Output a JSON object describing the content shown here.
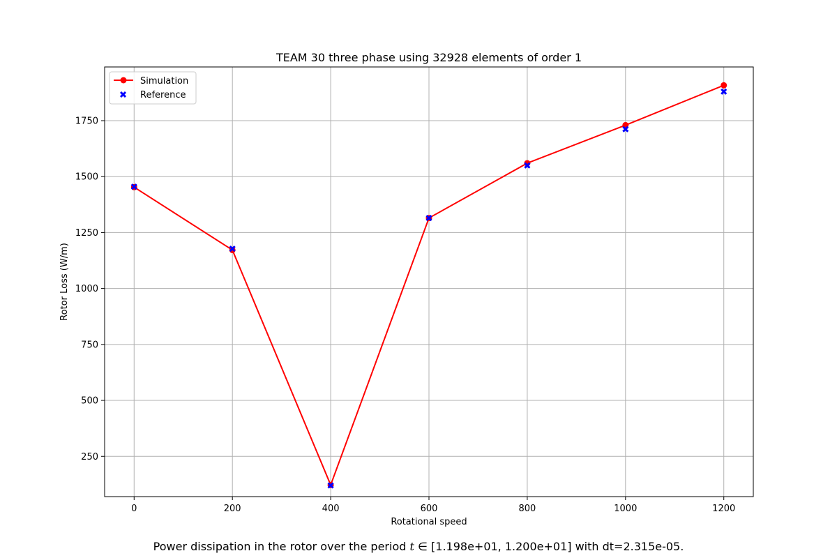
{
  "chart_data": {
    "type": "line",
    "title": "TEAM 30 three phase using 32928 elements of order 1",
    "xlabel": "Rotational speed",
    "ylabel": "Rotor Loss (W/m)",
    "xlim": [
      -60,
      1260
    ],
    "ylim": [
      70,
      1990
    ],
    "xticks": [
      0,
      200,
      400,
      600,
      800,
      1000,
      1200
    ],
    "yticks": [
      250,
      500,
      750,
      1000,
      1250,
      1500,
      1750
    ],
    "grid": true,
    "legend_position": "top-left",
    "x": [
      0,
      200,
      400,
      600,
      800,
      1000,
      1200
    ],
    "series": [
      {
        "name": "Simulation",
        "style": "line-with-circles",
        "color": "#ff0000",
        "values": [
          1453,
          1172,
          122,
          1315,
          1560,
          1730,
          1908
        ]
      },
      {
        "name": "Reference",
        "style": "x-markers",
        "color": "#0000ff",
        "values": [
          1455,
          1178,
          120,
          1315,
          1550,
          1712,
          1880
        ]
      }
    ]
  },
  "caption": {
    "prefix": "Power dissipation in the rotor over the period ",
    "var": "t",
    "suffix": " ∈ [1.198e+01, 1.200e+01] with dt=2.315e-05."
  }
}
